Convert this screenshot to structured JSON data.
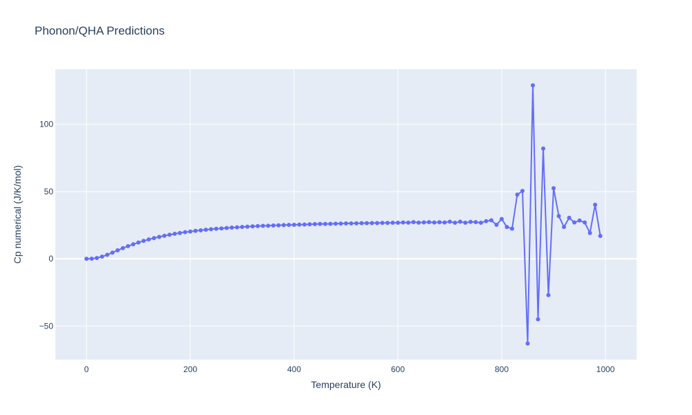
{
  "chart_data": {
    "type": "line",
    "title": "Phonon/QHA Predictions",
    "xlabel": "Temperature (K)",
    "ylabel": "Cp numerical (J/K/mol)",
    "xlim": [
      -60,
      1060
    ],
    "ylim": [
      -75,
      141
    ],
    "xticks": [
      0,
      200,
      400,
      600,
      800,
      1000
    ],
    "yticks": [
      -50,
      0,
      50,
      100
    ],
    "grid": true,
    "legend": "none",
    "colors": {
      "plot_bg": "#e5ecf6",
      "grid": "#ffffff",
      "series": "#636efa",
      "text": "#2a3f5f"
    },
    "series": [
      {
        "x": [
          0,
          10,
          20,
          30,
          40,
          50,
          60,
          70,
          80,
          90,
          100,
          110,
          120,
          130,
          140,
          150,
          160,
          170,
          180,
          190,
          200,
          210,
          220,
          230,
          240,
          250,
          260,
          270,
          280,
          290,
          300,
          310,
          320,
          330,
          340,
          350,
          360,
          370,
          380,
          390,
          400,
          410,
          420,
          430,
          440,
          450,
          460,
          470,
          480,
          490,
          500,
          510,
          520,
          530,
          540,
          550,
          560,
          570,
          580,
          590,
          600,
          610,
          620,
          630,
          640,
          650,
          660,
          670,
          680,
          690,
          700,
          710,
          720,
          730,
          740,
          750,
          760,
          770,
          780,
          790,
          800,
          810,
          820,
          830,
          840,
          850,
          860,
          870,
          880,
          890,
          900,
          910,
          920,
          930,
          940,
          950,
          960,
          970,
          980,
          990
        ],
        "y": [
          0,
          0.1,
          0.6,
          1.6,
          3.0,
          4.6,
          6.3,
          7.9,
          9.4,
          10.8,
          12.1,
          13.3,
          14.4,
          15.4,
          16.3,
          17.1,
          17.9,
          18.6,
          19.2,
          19.8,
          20.3,
          20.8,
          21.2,
          21.6,
          22.0,
          22.3,
          22.6,
          22.9,
          23.2,
          23.4,
          23.7,
          23.9,
          24.1,
          24.3,
          24.5,
          24.6,
          24.8,
          24.9,
          25.1,
          25.2,
          25.3,
          25.4,
          25.5,
          25.7,
          25.8,
          25.9,
          25.9,
          26.0,
          26.1,
          26.2,
          26.3,
          26.3,
          26.4,
          26.5,
          26.5,
          26.6,
          26.6,
          26.7,
          26.7,
          26.8,
          26.8,
          27.0,
          26.9,
          27.3,
          26.9,
          27.1,
          27.3,
          27.0,
          27.2,
          27.0,
          27.6,
          26.8,
          27.6,
          26.8,
          27.5,
          27.3,
          26.8,
          28.0,
          28.6,
          25.3,
          29.6,
          23.6,
          22.4,
          47.7,
          50.5,
          -63.0,
          129.0,
          -45.0,
          82.0,
          -27.0,
          52.5,
          31.8,
          23.7,
          30.5,
          27.0,
          28.5,
          27.0,
          19.2,
          40.2,
          17.0
        ]
      }
    ]
  }
}
